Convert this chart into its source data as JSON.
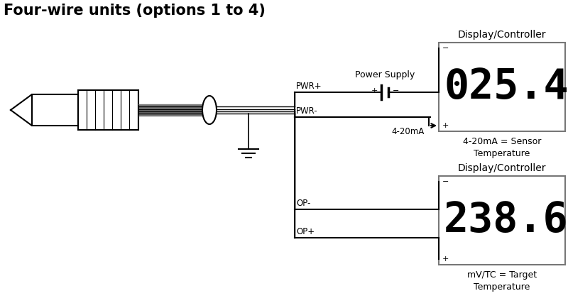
{
  "title": "Four-wire units (options 1 to 4)",
  "bg_color": "#ffffff",
  "line_color": "#000000",
  "gray_color": "#777777",
  "display1_text": "025.4",
  "display2_text": "238.6",
  "display1_label": "4-20mA = Sensor\nTemperature",
  "display2_label": "mV/TC = Target\nTemperature",
  "display_header": "Display/Controller",
  "power_supply_label": "Power Supply",
  "pwr_plus_label": "PWR+",
  "pwr_minus_label": "PWR-",
  "ma_label": "4-20mA",
  "op_minus_label": "OP-",
  "op_plus_label": "OP+",
  "title_fontsize": 15,
  "label_fontsize": 8.5,
  "header_fontsize": 10,
  "display_fontsize": 42
}
